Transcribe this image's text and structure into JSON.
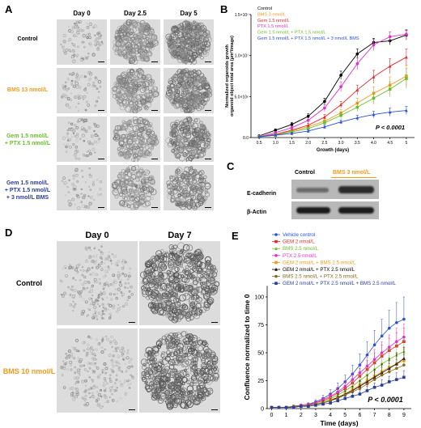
{
  "panelA": {
    "label": "A",
    "columns": [
      "Day 0",
      "Day 2.5",
      "Day 5"
    ],
    "rows": [
      {
        "label": "Control",
        "color": "#000000"
      },
      {
        "label": "BMS 13 nmol/L",
        "color": "#f39a1e"
      },
      {
        "label": "Gem 1.5 nmol/L\n+ PTX 1.5 nmol/L",
        "color": "#6cbf2a"
      },
      {
        "label": "Gem 1.5 nmol/L\n+ PTX 1.5 nmol/L\n+ 3 nmol/L BMS",
        "color": "#2a3d9a"
      }
    ]
  },
  "panelB": {
    "label": "B"
  },
  "panelC": {
    "label": "C",
    "lanes": [
      "Control",
      "BMS 3 nmol/L"
    ],
    "lane_colors": [
      "#000000",
      "#f39a1e"
    ],
    "bands": [
      "E-cadherin",
      "β-Actin"
    ]
  },
  "panelD": {
    "label": "D",
    "columns": [
      "Day 0",
      "Day 7"
    ],
    "rows": [
      {
        "label": "Control",
        "color": "#000000"
      },
      {
        "label": "BMS 10 nmol/L",
        "color": "#f39a1e"
      }
    ]
  },
  "panelE": {
    "label": "E"
  },
  "chart_data": [
    {
      "type": "line",
      "panel": "B",
      "ylabel": "Normalized organoids growth\norganoid object total area (μm²/image)",
      "xlabel": "Growth (days)",
      "x": [
        0.5,
        1.0,
        1.5,
        2.0,
        2.5,
        3.0,
        3.5,
        4.0,
        4.5,
        5.0
      ],
      "xtick_labels": [
        "0.5",
        "1.0",
        "1.5",
        "2.0",
        "2.5",
        "3.0",
        "3.5",
        "4.0",
        "4.5",
        "5"
      ],
      "ylim": [
        0,
        15000000
      ],
      "yticks": [
        0,
        5000000,
        10000000,
        15000000
      ],
      "ytick_labels": [
        "0.0",
        "5.0×10⁶",
        "1.0×10⁷",
        "1.5×10⁷"
      ],
      "annotation": "P < 0.0001",
      "series": [
        {
          "name": "Control",
          "color": "#000000",
          "values": [
            200000,
            900000,
            1600000,
            2600000,
            4400000,
            7600000,
            10200000,
            11600000,
            11800000,
            12500000
          ],
          "err": [
            50000,
            150000,
            250000,
            300000,
            400000,
            500000,
            600000,
            500000,
            500000,
            600000
          ]
        },
        {
          "name": "BMS 3 nmol/L",
          "color": "#f39a1e",
          "values": [
            100000,
            400000,
            800000,
            1300000,
            2000000,
            3000000,
            4200000,
            5400000,
            6400000,
            7500000
          ],
          "err": [
            30000,
            80000,
            150000,
            200000,
            300000,
            400000,
            600000,
            800000,
            1000000,
            1300000
          ]
        },
        {
          "name": "Gem 1.5 nmol/L",
          "color": "#e8282b",
          "values": [
            100000,
            400000,
            900000,
            1500000,
            2500000,
            4000000,
            5800000,
            7400000,
            8700000,
            9800000
          ],
          "err": [
            30000,
            80000,
            150000,
            250000,
            300000,
            400000,
            600000,
            800000,
            900000,
            1000000
          ]
        },
        {
          "name": "PTX 1.5 nmol/L",
          "color": "#e030c8",
          "values": [
            100000,
            600000,
            1200000,
            2100000,
            3600000,
            6200000,
            9000000,
            11300000,
            12300000,
            12600000
          ],
          "err": [
            30000,
            100000,
            200000,
            300000,
            400000,
            600000,
            700000,
            700000,
            600000,
            600000
          ]
        },
        {
          "name": "Gem 1.5 nmol/L + PTX 1.5 nmol/L",
          "color": "#6cbf2a",
          "values": [
            100000,
            300000,
            700000,
            1100000,
            1800000,
            2700000,
            3700000,
            4800000,
            5900000,
            7200000
          ],
          "err": [
            30000,
            80000,
            150000,
            200000,
            300000,
            400000,
            500000,
            700000,
            900000,
            1200000
          ]
        },
        {
          "name": "Gem 1.5 nmol/L + PTX 1.5 nmol/L + 3 nmol/L BMS",
          "color": "#2a50d8",
          "values": [
            100000,
            300000,
            500000,
            800000,
            1300000,
            1900000,
            2400000,
            2800000,
            3100000,
            3300000
          ],
          "err": [
            30000,
            60000,
            100000,
            150000,
            200000,
            250000,
            300000,
            400000,
            500000,
            500000
          ]
        }
      ]
    },
    {
      "type": "line",
      "panel": "E",
      "ylabel": "Confluence normalized to time 0",
      "xlabel": "Time (days)",
      "x": [
        0,
        0.5,
        1,
        1.5,
        2,
        2.5,
        3,
        3.5,
        4,
        4.5,
        5,
        5.5,
        6,
        6.5,
        7,
        7.5,
        8,
        8.5,
        9
      ],
      "xticks": [
        0,
        1,
        2,
        3,
        4,
        5,
        6,
        7,
        8,
        9
      ],
      "ylim": [
        0,
        150
      ],
      "yticks": [
        0,
        25,
        50,
        75,
        100
      ],
      "annotation": "P < 0.0001",
      "series": [
        {
          "name": "Vehicle control",
          "color": "#2a50d8",
          "values": [
            1,
            1,
            1,
            2,
            3,
            4,
            6,
            9,
            13,
            18,
            24,
            31,
            39,
            48,
            57,
            65,
            72,
            77,
            80
          ],
          "err": [
            0,
            0,
            0,
            1,
            1,
            1,
            2,
            3,
            4,
            5,
            6,
            8,
            10,
            12,
            13,
            15,
            16,
            18,
            20
          ]
        },
        {
          "name": "GEM 2 nmol/L",
          "color": "#e8282b",
          "values": [
            1,
            1,
            1,
            2,
            2,
            3,
            5,
            7,
            10,
            14,
            18,
            23,
            29,
            35,
            41,
            47,
            52,
            56,
            60
          ],
          "err": [
            0,
            0,
            0,
            1,
            1,
            1,
            1,
            2,
            3,
            4,
            5,
            6,
            7,
            8,
            9,
            10,
            11,
            12,
            12
          ]
        },
        {
          "name": "BMS 2.5 nmol/L",
          "color": "#6cbf2a",
          "values": [
            1,
            1,
            1,
            2,
            2,
            3,
            4,
            6,
            9,
            12,
            16,
            20,
            25,
            30,
            35,
            40,
            44,
            48,
            51
          ],
          "err": [
            0,
            0,
            0,
            1,
            1,
            1,
            1,
            2,
            3,
            3,
            4,
            5,
            6,
            7,
            8,
            9,
            10,
            10,
            11
          ]
        },
        {
          "name": "PTX 2.5 nmol/L",
          "color": "#e030c8",
          "values": [
            1,
            1,
            1,
            2,
            3,
            4,
            5,
            8,
            11,
            15,
            20,
            26,
            32,
            38,
            44,
            50,
            55,
            60,
            64
          ],
          "err": [
            0,
            0,
            0,
            1,
            1,
            1,
            2,
            2,
            3,
            4,
            5,
            6,
            7,
            8,
            9,
            10,
            11,
            12,
            12
          ]
        },
        {
          "name": "GEM 2 nmol/L + BMS 2.5 nmol/L",
          "color": "#f39a1e",
          "values": [
            1,
            1,
            1,
            2,
            2,
            3,
            4,
            5,
            8,
            10,
            13,
            17,
            21,
            25,
            29,
            33,
            37,
            40,
            43
          ],
          "err": [
            0,
            0,
            0,
            1,
            1,
            1,
            1,
            2,
            2,
            3,
            3,
            4,
            5,
            6,
            7,
            8,
            8,
            9,
            10
          ]
        },
        {
          "name": "GEM 2 nmol/L + PTX 2.5 nmol/L",
          "color": "#000000",
          "values": [
            1,
            1,
            1,
            2,
            2,
            3,
            4,
            5,
            7,
            10,
            13,
            16,
            20,
            24,
            28,
            32,
            36,
            40,
            45
          ],
          "err": [
            0,
            0,
            0,
            1,
            1,
            1,
            1,
            2,
            2,
            3,
            3,
            4,
            5,
            6,
            7,
            8,
            9,
            10,
            10
          ]
        },
        {
          "name": "BMS 2.5 nmol/L + PTX 2.5 nmol/L",
          "color": "#8a6a1a",
          "values": [
            1,
            1,
            1,
            2,
            2,
            3,
            4,
            5,
            7,
            9,
            12,
            15,
            18,
            22,
            26,
            30,
            33,
            36,
            39
          ],
          "err": [
            0,
            0,
            0,
            1,
            1,
            1,
            1,
            1,
            2,
            2,
            3,
            4,
            4,
            5,
            6,
            7,
            7,
            8,
            9
          ]
        },
        {
          "name": "GEM 2 nmol/L + PTX 2.5 nmol/L + BMS 2.5 nmol/L",
          "color": "#2a3d9a",
          "values": [
            1,
            1,
            1,
            1,
            2,
            2,
            3,
            4,
            5,
            7,
            9,
            11,
            13,
            16,
            19,
            21,
            24,
            26,
            28
          ],
          "err": [
            0,
            0,
            0,
            0,
            1,
            1,
            1,
            1,
            1,
            2,
            2,
            3,
            3,
            4,
            4,
            5,
            5,
            6,
            6
          ]
        }
      ]
    }
  ]
}
